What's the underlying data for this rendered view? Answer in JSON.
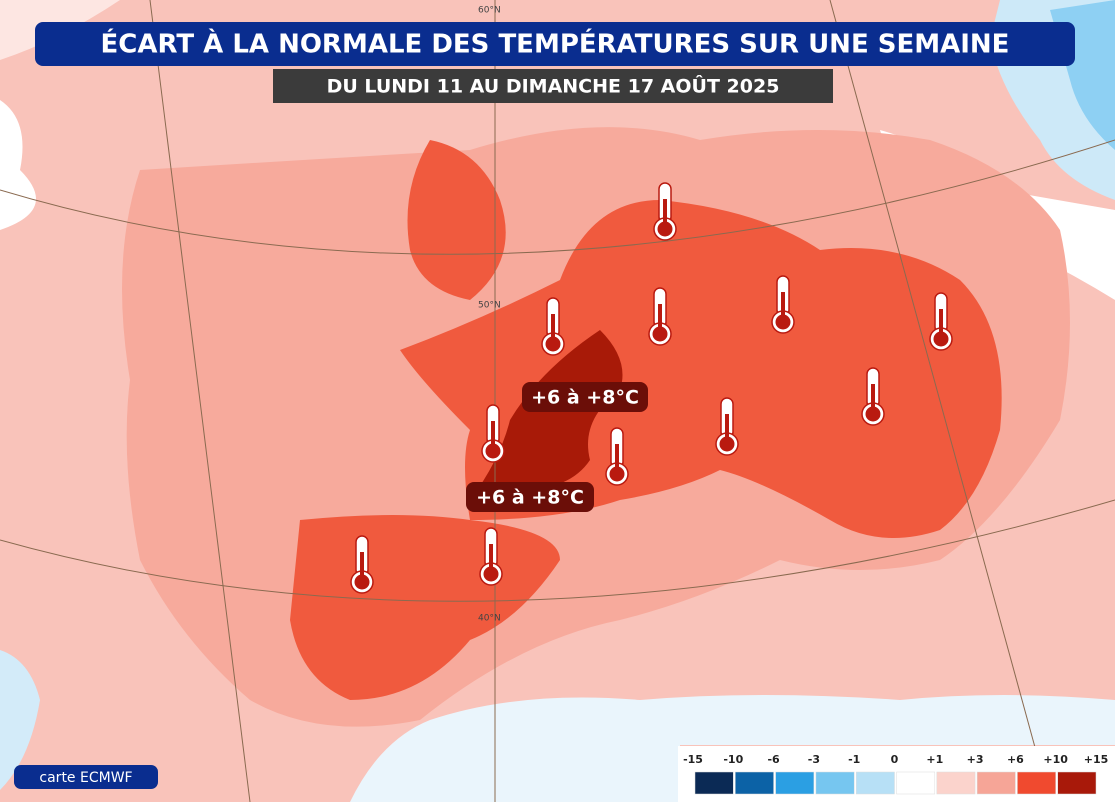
{
  "header": {
    "title": "ÉCART À LA NORMALE DES TEMPÉRATURES SUR UNE SEMAINE",
    "subtitle": "DU LUNDI 11 AU DIMANCHE 17 AOÛT 2025"
  },
  "annotations": [
    "+6 à +8°C",
    "+6 à +8°C"
  ],
  "latitudes": [
    "60°N",
    "50°N",
    "40°N"
  ],
  "legend": {
    "ticks": [
      "-15",
      "-10",
      "-6",
      "-3",
      "-1",
      "0",
      "+1",
      "+3",
      "+6",
      "+10",
      "+15"
    ],
    "colors": [
      "#0b2a55",
      "#0c62a6",
      "#2b9fe3",
      "#76c6f0",
      "#b7e0f6",
      "#ffffff",
      "#fbd3cc",
      "#f6a597",
      "#f04a2f",
      "#a8190a",
      "#5a0a05"
    ]
  },
  "credit": "carte ECMWF"
}
